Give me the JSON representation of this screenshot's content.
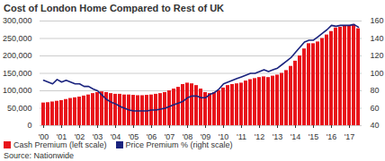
{
  "chart_data": {
    "type": "bar",
    "title": "Cost of London Home Compared to Rest of UK",
    "source": "Source: Nationwide",
    "categories": [
      "'00",
      null,
      null,
      null,
      "'01",
      null,
      null,
      null,
      "'02",
      null,
      null,
      null,
      "'03",
      null,
      null,
      null,
      "'04",
      null,
      null,
      null,
      "'05",
      null,
      null,
      null,
      "'06",
      null,
      null,
      null,
      "'07",
      null,
      null,
      null,
      "'08",
      null,
      null,
      null,
      "'09",
      null,
      null,
      null,
      "'10",
      null,
      null,
      null,
      "'11",
      null,
      null,
      null,
      "'12",
      null,
      null,
      null,
      "'13",
      null,
      null,
      null,
      "'14",
      null,
      null,
      null,
      "'15",
      null,
      null,
      null,
      "'16",
      null,
      null,
      null,
      "'17",
      null,
      null
    ],
    "series": [
      {
        "name": "Cash Premium (left scale)",
        "type": "bar",
        "color": "#e8141b",
        "values": [
          65000,
          66000,
          68000,
          70000,
          72000,
          75000,
          78000,
          80000,
          82000,
          85000,
          88000,
          92000,
          95000,
          97000,
          95000,
          92000,
          90000,
          90000,
          88000,
          88000,
          87000,
          86000,
          86000,
          87000,
          88000,
          90000,
          92000,
          95000,
          100000,
          105000,
          110000,
          118000,
          122000,
          120000,
          115000,
          105000,
          95000,
          92000,
          95000,
          100000,
          108000,
          115000,
          118000,
          120000,
          122000,
          128000,
          132000,
          135000,
          138000,
          140000,
          138000,
          142000,
          145000,
          150000,
          158000,
          170000,
          185000,
          200000,
          220000,
          235000,
          235000,
          240000,
          250000,
          260000,
          270000,
          280000,
          282000,
          285000,
          285000,
          290000,
          278000
        ]
      },
      {
        "name": "Price Premium % (right scale)",
        "type": "line",
        "color": "#1a237e",
        "axis": "y2",
        "values": [
          92,
          90,
          88,
          93,
          90,
          92,
          90,
          88,
          88,
          85,
          85,
          82,
          80,
          75,
          70,
          67,
          65,
          62,
          60,
          58,
          57,
          57,
          57,
          57,
          58,
          58,
          59,
          60,
          62,
          64,
          66,
          68,
          72,
          74,
          74,
          72,
          72,
          76,
          78,
          82,
          88,
          90,
          92,
          94,
          96,
          98,
          100,
          100,
          102,
          104,
          102,
          104,
          106,
          110,
          114,
          118,
          124,
          130,
          136,
          138,
          138,
          142,
          146,
          150,
          155,
          154,
          155,
          155,
          155,
          156,
          153
        ]
      }
    ],
    "ylim": [
      0,
      300000
    ],
    "yticks": [
      0,
      {
        "value": 50000,
        "label": "50,000"
      },
      {
        "value": 100000,
        "label": "100,000"
      },
      {
        "value": 150000,
        "label": "150,000"
      },
      {
        "value": 200000,
        "label": "200,000"
      },
      {
        "value": 250000,
        "label": "250,000"
      },
      {
        "value": 300000,
        "label": "300,000"
      }
    ],
    "y2lim": [
      40,
      160
    ],
    "y2ticks": [
      40,
      60,
      80,
      100,
      120,
      140,
      160
    ],
    "grid": true,
    "legend": "bottom"
  }
}
